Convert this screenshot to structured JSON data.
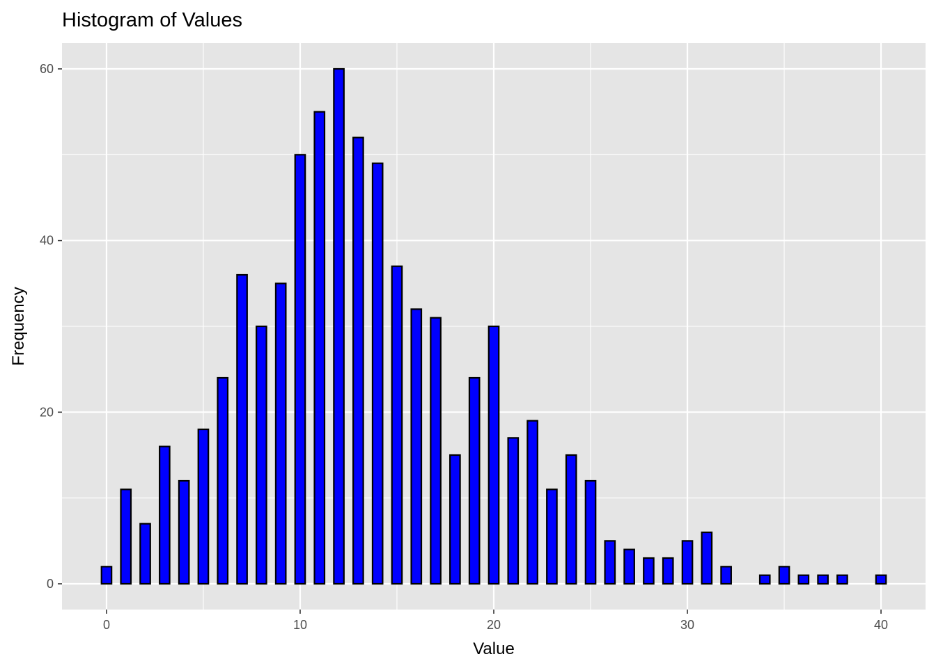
{
  "chart_data": {
    "type": "bar",
    "title": "Histogram of Values",
    "xlabel": "Value",
    "ylabel": "Frequency",
    "xlim": [
      -2.3,
      42.3
    ],
    "ylim": [
      -3,
      63
    ],
    "x_ticks": [
      0,
      10,
      20,
      30,
      40
    ],
    "y_ticks": [
      0,
      20,
      40,
      60
    ],
    "grid": true,
    "colors": {
      "panel": "#e5e5e5",
      "grid": "#ffffff",
      "bar_fill": "#0000ff",
      "bar_stroke": "#000000"
    },
    "x": [
      0,
      1,
      2,
      3,
      4,
      5,
      6,
      7,
      8,
      9,
      10,
      11,
      12,
      13,
      14,
      15,
      16,
      17,
      18,
      19,
      20,
      21,
      22,
      23,
      24,
      25,
      26,
      27,
      28,
      29,
      30,
      31,
      32,
      33,
      34,
      35,
      36,
      37,
      38,
      39,
      40
    ],
    "values": [
      2,
      11,
      7,
      16,
      12,
      18,
      24,
      36,
      30,
      35,
      50,
      55,
      60,
      52,
      49,
      37,
      32,
      31,
      15,
      24,
      30,
      17,
      19,
      11,
      15,
      12,
      5,
      4,
      3,
      3,
      5,
      6,
      2,
      0,
      1,
      2,
      1,
      1,
      1,
      0,
      1
    ]
  }
}
